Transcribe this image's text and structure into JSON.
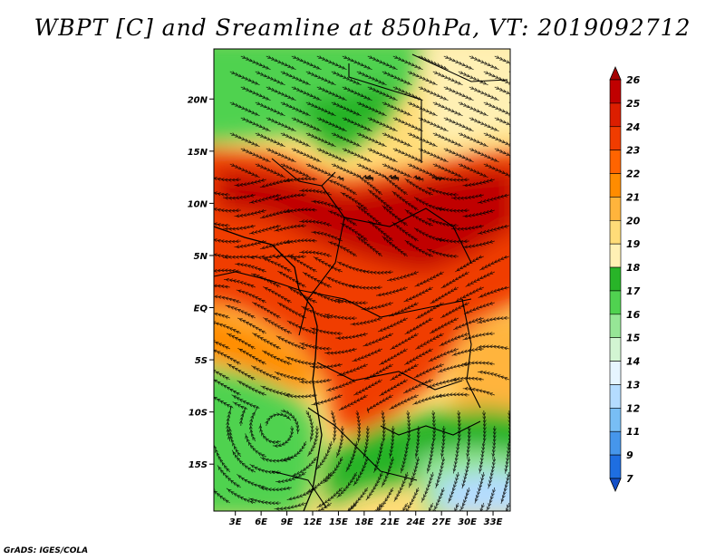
{
  "title": "WBPT [C] and Sreamline at 850hPa, VT: 2019092712",
  "credit": "GrADS: IGES/COLA",
  "map": {
    "lat_labels": [
      "20N",
      "15N",
      "10N",
      "5N",
      "EQ",
      "5S",
      "10S",
      "15S"
    ],
    "lat_values": [
      20,
      15,
      10,
      5,
      0,
      -5,
      -10,
      -15
    ],
    "lon_labels": [
      "3E",
      "6E",
      "9E",
      "12E",
      "15E",
      "18E",
      "21E",
      "24E",
      "27E",
      "30E",
      "33E"
    ],
    "lon_values": [
      3,
      6,
      9,
      12,
      15,
      18,
      21,
      24,
      27,
      30,
      33
    ],
    "lat_range": [
      -19.5,
      24.8
    ],
    "lon_range": [
      0.5,
      35
    ]
  },
  "colorbar": {
    "labels": [
      "26",
      "25",
      "24",
      "23",
      "22",
      "21",
      "20",
      "19",
      "18",
      "17",
      "16",
      "15",
      "14",
      "13",
      "12",
      "11",
      "9",
      "7"
    ],
    "colors": [
      "#a50000",
      "#c00000",
      "#dc1e00",
      "#f03c00",
      "#ff6400",
      "#ff8c00",
      "#ffb43c",
      "#ffdc78",
      "#fff0b4",
      "#28b428",
      "#50d250",
      "#96e696",
      "#d2f5d2",
      "#e6f5ff",
      "#b4dcff",
      "#78bef5",
      "#4696eb",
      "#1e6ee1",
      "#1450c8"
    ]
  }
}
